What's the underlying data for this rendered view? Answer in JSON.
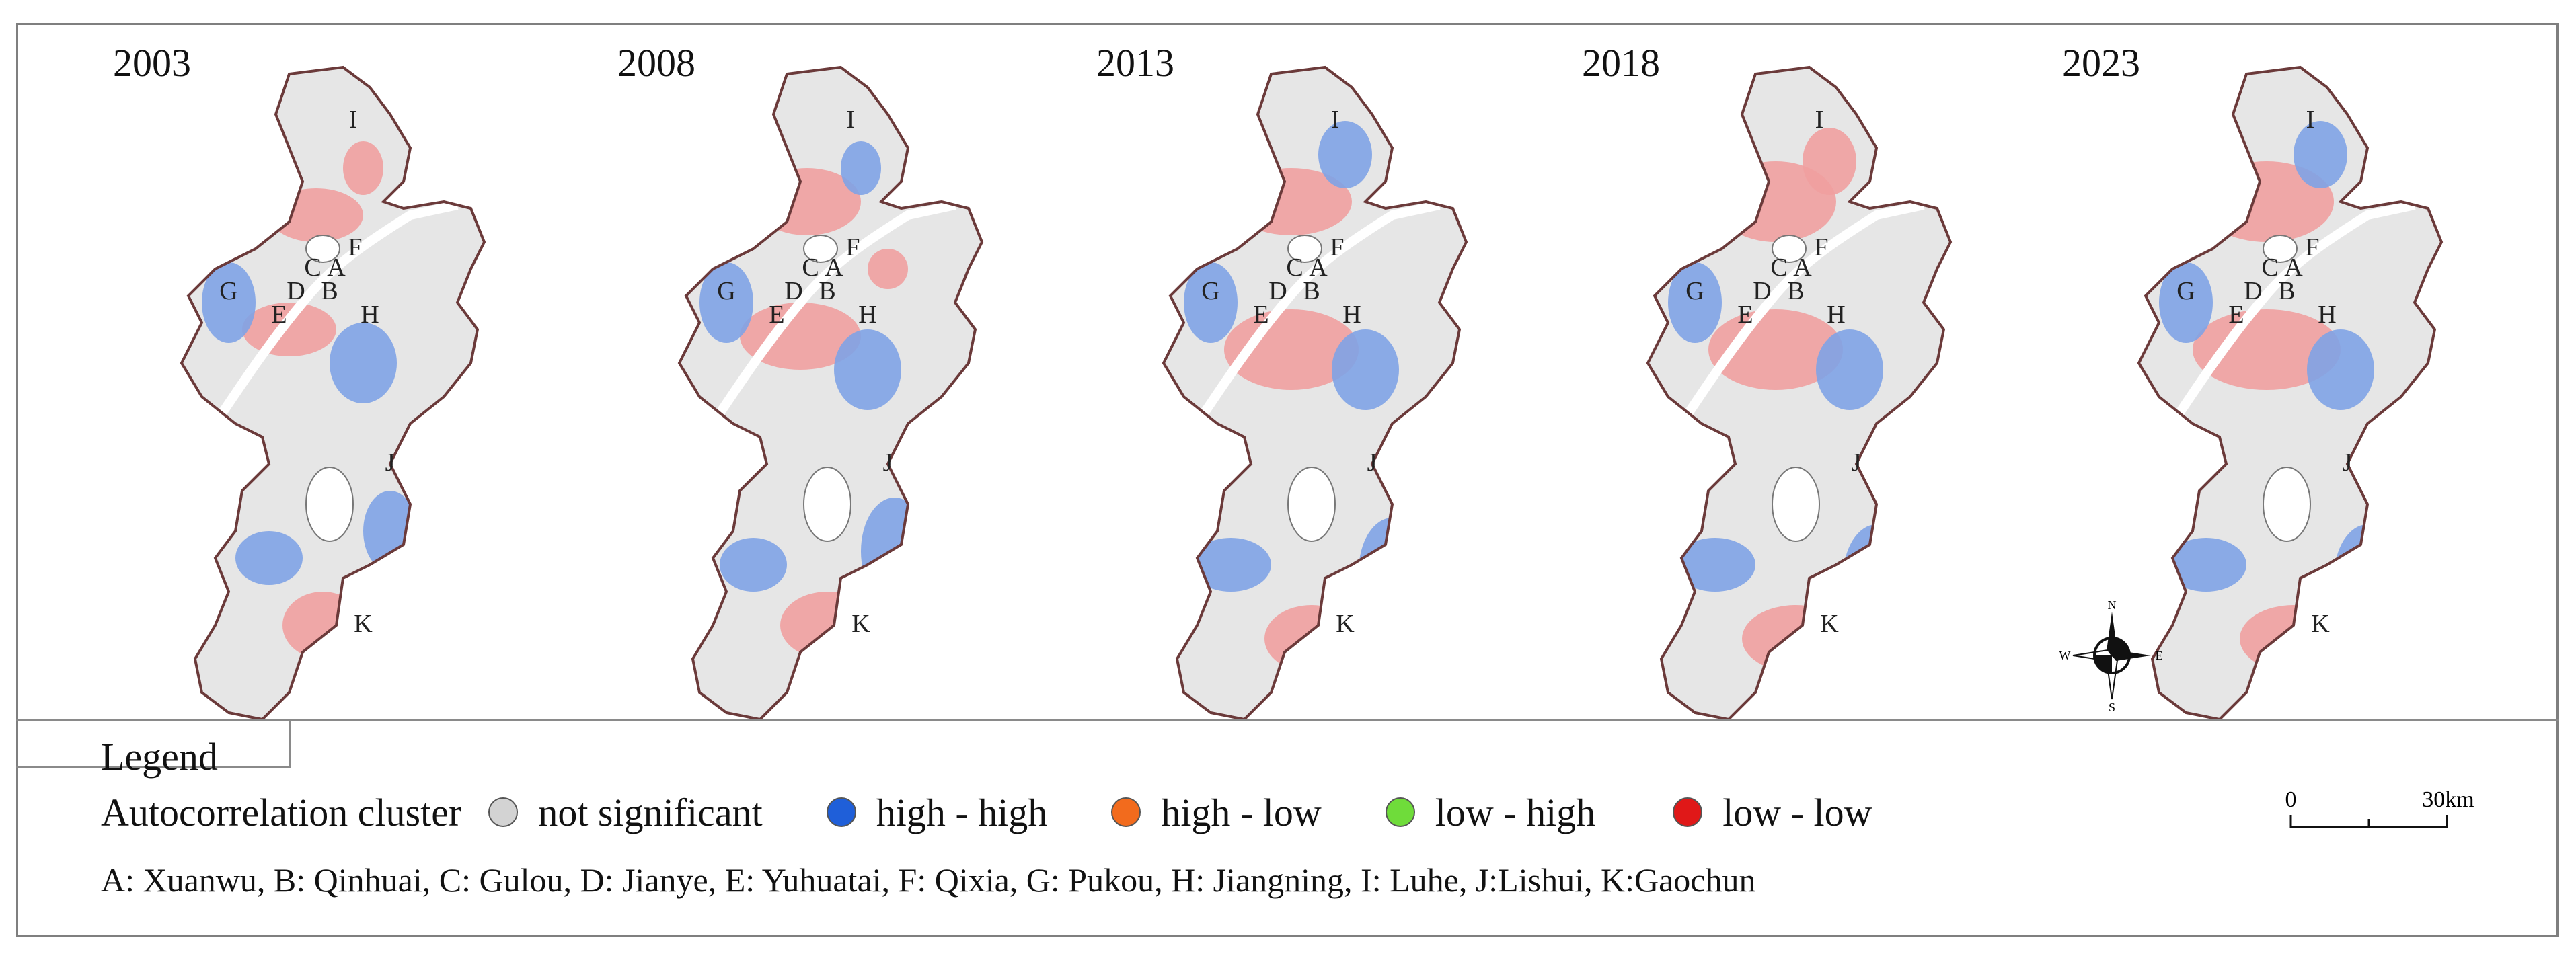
{
  "maps": [
    {
      "year": "2003"
    },
    {
      "year": "2008"
    },
    {
      "year": "2013"
    },
    {
      "year": "2018"
    },
    {
      "year": "2023"
    }
  ],
  "district_letters": [
    "A",
    "B",
    "C",
    "D",
    "E",
    "F",
    "G",
    "H",
    "I",
    "J",
    "K"
  ],
  "legend": {
    "title": "Legend",
    "cluster_label": "Autocorrelation cluster",
    "items": [
      {
        "label": "not significant",
        "color": "#d3d3d3"
      },
      {
        "label": "high - high",
        "color": "#1f5fd9"
      },
      {
        "label": "high - low",
        "color": "#f26b1d"
      },
      {
        "label": "low - high",
        "color": "#6fdc3a"
      },
      {
        "label": "low - low",
        "color": "#e01818"
      }
    ]
  },
  "scale": {
    "zero": "0",
    "max": "30km"
  },
  "compass": {
    "n": "N",
    "s": "S",
    "w": "W",
    "e": "E"
  },
  "district_key": "A: Xuanwu,  B: Qinhuai,  C: Gulou,  D: Jianye,  E: Yuhuatai,  F: Qixia,  G: Pukou,  H: Jiangning,  I: Luhe,  J:Lishui,  K:Gaochun",
  "map_colors": {
    "background": "#e6e6e6",
    "high_high_fill": "#7fa3e6",
    "low_low_fill": "#f0a0a0",
    "low_high_fill": "#9be07a",
    "boundary": "#6b3a3a",
    "river": "#ffffff"
  }
}
